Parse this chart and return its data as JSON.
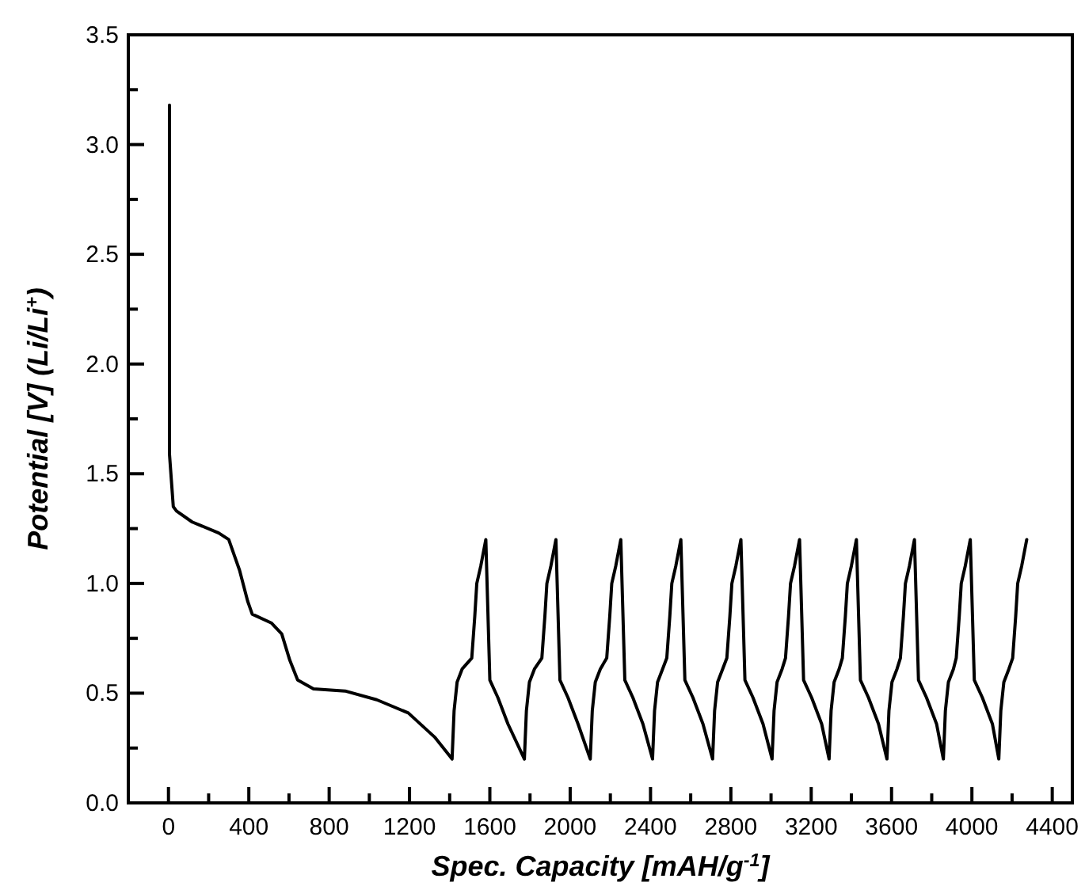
{
  "chart_data": {
    "type": "line",
    "xlabel": "Spec. Capacity [mAH/g$^{-1}$]",
    "ylabel": "Potential [V] (Li/Li$^{+}$)",
    "xlim": [
      -200,
      4500
    ],
    "ylim": [
      0,
      3.5
    ],
    "xticks": [
      0,
      {
        "value": 200,
        "label": null
      },
      400,
      {
        "value": 600,
        "label": null
      },
      800,
      {
        "value": 1000,
        "label": null
      },
      1200,
      {
        "value": 1400,
        "label": null
      },
      1600,
      {
        "value": 1800,
        "label": null
      },
      2000,
      {
        "value": 2200,
        "label": null
      },
      2400,
      {
        "value": 2600,
        "label": null
      },
      2800,
      {
        "value": 3000,
        "label": null
      },
      3200,
      {
        "value": 3400,
        "label": null
      },
      3600,
      {
        "value": 3800,
        "label": null
      },
      4000,
      {
        "value": 4200,
        "label": null
      },
      4400
    ],
    "yticks": [
      {
        "value": 0,
        "label": "0.0"
      },
      {
        "value": 0.25,
        "label": null
      },
      0.5,
      {
        "value": 0.75,
        "label": null
      },
      {
        "value": 1,
        "label": "1.0"
      },
      {
        "value": 1.25,
        "label": null
      },
      1.5,
      {
        "value": 1.75,
        "label": null
      },
      {
        "value": 2,
        "label": "2.0"
      },
      {
        "value": 2.25,
        "label": null
      },
      2.5,
      {
        "value": 2.75,
        "label": null
      },
      {
        "value": 3,
        "label": "3.0"
      },
      {
        "value": 3.25,
        "label": null
      },
      3.5
    ],
    "grid": false,
    "marker": "none",
    "line_style": "solid",
    "series": [
      {
        "color": "#000000",
        "x": [
          5,
          5,
          5,
          24,
          40,
          118,
          250,
          300,
          354,
          394,
          417,
          512,
          564,
          604,
          643,
          722,
          879,
          1037,
          1194,
          1325,
          1412,
          1422,
          1437,
          1462,
          1510,
          1525,
          1535,
          1555,
          1580,
          1600,
          1640,
          1690,
          1772,
          1782,
          1797,
          1822,
          1859,
          1874,
          1884,
          1904,
          1929,
          1949,
          1989,
          2039,
          2100,
          2110,
          2125,
          2150,
          2182,
          2197,
          2207,
          2227,
          2252,
          2272,
          2312,
          2362,
          2410,
          2420,
          2435,
          2460,
          2481,
          2496,
          2506,
          2526,
          2551,
          2571,
          2611,
          2661,
          2709,
          2719,
          2734,
          2759,
          2780,
          2795,
          2805,
          2825,
          2850,
          2870,
          2910,
          2960,
          3005,
          3015,
          3030,
          3055,
          3072,
          3087,
          3097,
          3117,
          3142,
          3162,
          3202,
          3252,
          3289,
          3299,
          3314,
          3339,
          3355,
          3370,
          3380,
          3400,
          3425,
          3445,
          3485,
          3535,
          3577,
          3587,
          3602,
          3627,
          3644,
          3659,
          3669,
          3689,
          3714,
          3734,
          3774,
          3824,
          3858,
          3868,
          3883,
          3908,
          3922,
          3937,
          3947,
          3967,
          3992,
          4012,
          4052,
          4102,
          4134,
          4144,
          4159,
          4184,
          4203,
          4218,
          4228,
          4248,
          4273
        ],
        "values": [
          3.18,
          1.83,
          1.59,
          1.35,
          1.33,
          1.28,
          1.23,
          1.2,
          1.06,
          0.92,
          0.86,
          0.82,
          0.77,
          0.65,
          0.56,
          0.52,
          0.51,
          0.47,
          0.41,
          0.3,
          0.2,
          0.42,
          0.55,
          0.61,
          0.66,
          0.85,
          1.0,
          1.08,
          1.2,
          0.56,
          0.48,
          0.36,
          0.2,
          0.42,
          0.55,
          0.61,
          0.66,
          0.85,
          1.0,
          1.08,
          1.2,
          0.56,
          0.48,
          0.36,
          0.2,
          0.42,
          0.55,
          0.61,
          0.66,
          0.85,
          1.0,
          1.08,
          1.2,
          0.56,
          0.48,
          0.36,
          0.2,
          0.42,
          0.55,
          0.61,
          0.66,
          0.85,
          1.0,
          1.08,
          1.2,
          0.56,
          0.48,
          0.36,
          0.2,
          0.42,
          0.55,
          0.61,
          0.66,
          0.85,
          1.0,
          1.08,
          1.2,
          0.56,
          0.48,
          0.36,
          0.2,
          0.42,
          0.55,
          0.61,
          0.66,
          0.85,
          1.0,
          1.08,
          1.2,
          0.56,
          0.48,
          0.36,
          0.2,
          0.42,
          0.55,
          0.61,
          0.66,
          0.85,
          1.0,
          1.08,
          1.2,
          0.56,
          0.48,
          0.36,
          0.2,
          0.42,
          0.55,
          0.61,
          0.66,
          0.85,
          1.0,
          1.08,
          1.2,
          0.56,
          0.48,
          0.36,
          0.2,
          0.42,
          0.55,
          0.61,
          0.66,
          0.85,
          1.0,
          1.08,
          1.2,
          0.56,
          0.48,
          0.36,
          0.2,
          0.42,
          0.55,
          0.61,
          0.66,
          0.85,
          1.0,
          1.08,
          1.2
        ]
      }
    ]
  }
}
